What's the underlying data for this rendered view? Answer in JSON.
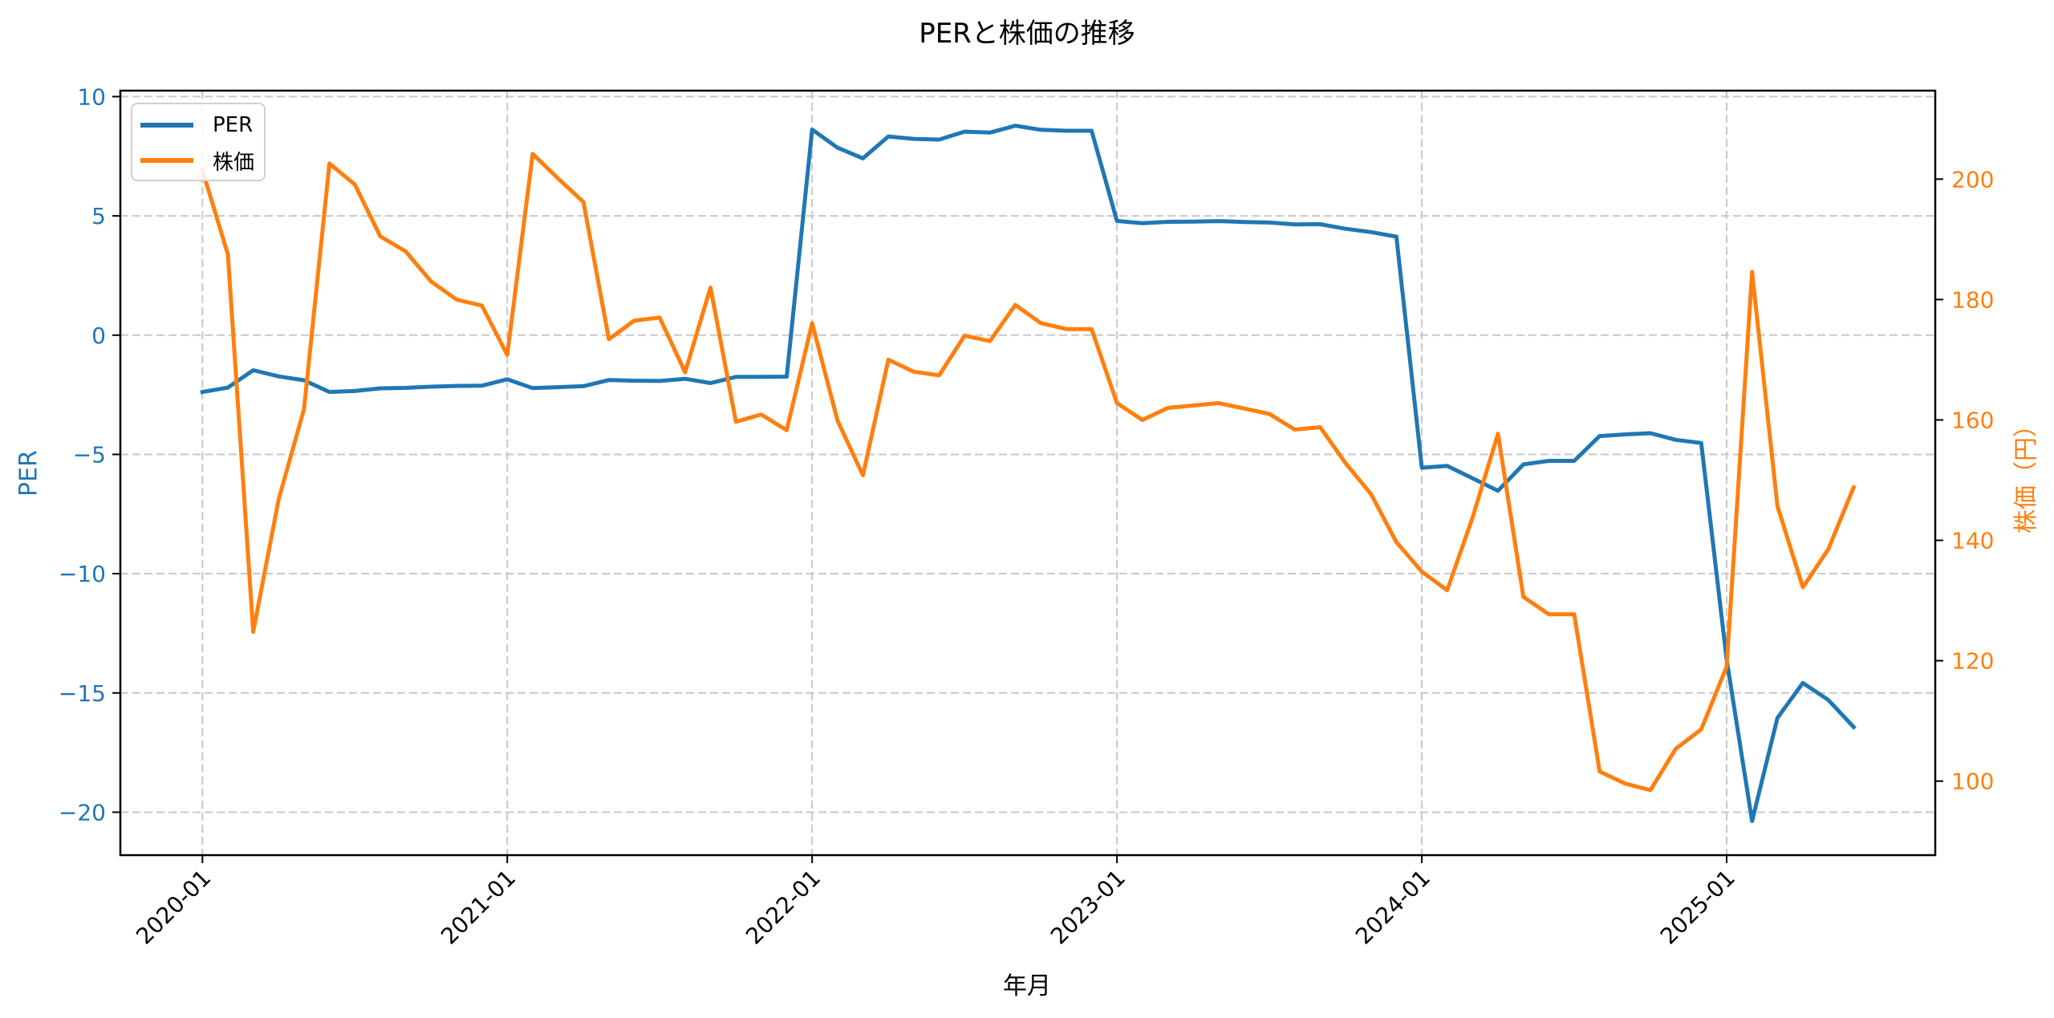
{
  "figure": {
    "title": "PERと株価の推移",
    "xlabel": "年月",
    "ylabel_left": "PER",
    "ylabel_right": "株価（円）"
  },
  "legend": {
    "items": [
      {
        "label": "PER",
        "color": "#1f77b4"
      },
      {
        "label": "株価",
        "color": "#ff7f0e"
      }
    ]
  },
  "colors": {
    "per": "#1f77b4",
    "price": "#ff7f0e",
    "grid": "#c8c8c8",
    "axis": "#000000"
  },
  "chart_data": {
    "type": "line",
    "title": "PERと株価の推移",
    "xlabel": "年月",
    "ylabel": "PER",
    "ylabel_right": "株価（円）",
    "x": [
      "2020-01",
      "2020-02",
      "2020-03",
      "2020-04",
      "2020-05",
      "2020-06",
      "2020-07",
      "2020-08",
      "2020-09",
      "2020-10",
      "2020-11",
      "2020-12",
      "2021-01",
      "2021-02",
      "2021-03",
      "2021-04",
      "2021-05",
      "2021-06",
      "2021-07",
      "2021-08",
      "2021-09",
      "2021-10",
      "2021-11",
      "2021-12",
      "2022-01",
      "2022-02",
      "2022-03",
      "2022-04",
      "2022-05",
      "2022-06",
      "2022-07",
      "2022-08",
      "2022-09",
      "2022-10",
      "2022-11",
      "2022-12",
      "2023-01",
      "2023-02",
      "2023-03",
      "2023-04",
      "2023-05",
      "2023-06",
      "2023-07",
      "2023-08",
      "2023-09",
      "2023-10",
      "2023-11",
      "2023-12",
      "2024-01",
      "2024-02",
      "2024-03",
      "2024-04",
      "2024-05",
      "2024-06",
      "2024-07",
      "2024-08",
      "2024-09",
      "2024-10",
      "2024-11",
      "2024-12",
      "2025-01",
      "2025-02",
      "2025-03",
      "2025-04",
      "2025-05",
      "2025-06"
    ],
    "x_ticks": [
      "2020-01",
      "2021-01",
      "2022-01",
      "2023-01",
      "2024-01",
      "2025-01"
    ],
    "x_tick_rotation": 45,
    "series": [
      {
        "name": "PER",
        "axis": "left",
        "color": "#1f77b4",
        "values": [
          -2.38,
          -2.2,
          -1.47,
          -1.73,
          -1.89,
          -2.38,
          -2.34,
          -2.23,
          -2.21,
          -2.16,
          -2.13,
          -2.12,
          -1.85,
          -2.22,
          -2.18,
          -2.14,
          -1.88,
          -1.91,
          -1.92,
          -1.83,
          -2.01,
          -1.75,
          -1.75,
          -1.74,
          8.62,
          7.86,
          7.41,
          8.33,
          8.23,
          8.2,
          8.53,
          8.49,
          8.78,
          8.61,
          8.57,
          8.57,
          4.79,
          4.69,
          4.75,
          4.76,
          4.78,
          4.74,
          4.72,
          4.64,
          4.65,
          4.46,
          4.32,
          4.13,
          -5.56,
          -5.48,
          -6.0,
          -6.52,
          -5.42,
          -5.27,
          -5.27,
          -4.23,
          -4.16,
          -4.11,
          -4.39,
          -4.52,
          -13.6,
          -20.37,
          -16.05,
          -14.58,
          -15.29,
          -16.43
        ]
      },
      {
        "name": "株価",
        "axis": "right",
        "color": "#ff7f0e",
        "values": [
          201.5,
          187.5,
          124.8,
          146.8,
          161.8,
          202.6,
          199.1,
          190.5,
          188.0,
          183.0,
          180.0,
          179.0,
          170.8,
          204.2,
          200.1,
          196.2,
          173.4,
          176.5,
          177.0,
          167.9,
          182.0,
          159.7,
          160.9,
          158.3,
          176.1,
          159.9,
          150.8,
          170.0,
          168.0,
          167.4,
          174.0,
          173.1,
          179.1,
          176.1,
          175.1,
          175.1,
          162.8,
          160.0,
          162.0,
          162.4,
          162.8,
          161.9,
          161.0,
          158.4,
          158.8,
          152.8,
          147.7,
          139.7,
          134.8,
          131.7,
          143.8,
          157.7,
          130.6,
          127.7,
          127.7,
          101.6,
          99.6,
          98.5,
          105.4,
          108.6,
          119.0,
          184.6,
          145.7,
          132.2,
          138.5,
          148.8
        ]
      }
    ],
    "ylim": [
      -21.8,
      10.25
    ],
    "ylim_right": [
      87.7,
      214.7
    ],
    "y_ticks": [
      10,
      5,
      0,
      -5,
      -10,
      -15,
      -20
    ],
    "y_tick_labels": [
      "10",
      "5",
      "0",
      "−5",
      "−10",
      "−15",
      "−20"
    ],
    "y_ticks_right": [
      200,
      180,
      160,
      140,
      120,
      100
    ],
    "y_tick_labels_right": [
      "200",
      "180",
      "160",
      "140",
      "120",
      "100"
    ],
    "grid": true,
    "grid_style": "dashed",
    "legend_position": "upper left"
  }
}
